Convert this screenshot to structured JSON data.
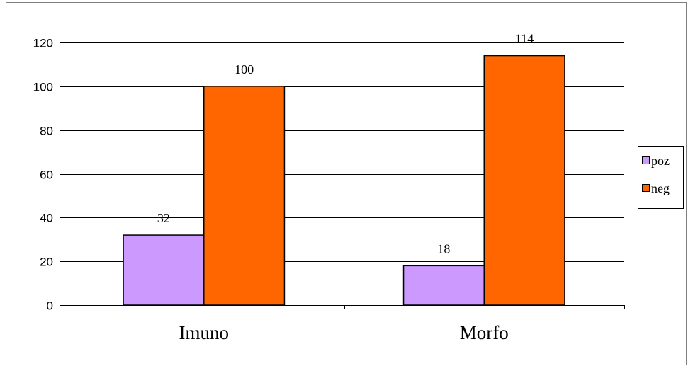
{
  "chart_data": {
    "type": "bar",
    "categories": [
      "Imuno",
      "Morfo"
    ],
    "series": [
      {
        "name": "poz",
        "values": [
          32,
          18
        ],
        "color": "#cc99ff"
      },
      {
        "name": "neg",
        "values": [
          100,
          114
        ],
        "color": "#ff6600"
      }
    ],
    "ylim": [
      0,
      120
    ],
    "yticks": [
      0,
      20,
      40,
      60,
      80,
      100,
      120
    ],
    "grid": true,
    "legend_position": "right",
    "data_labels": true
  }
}
